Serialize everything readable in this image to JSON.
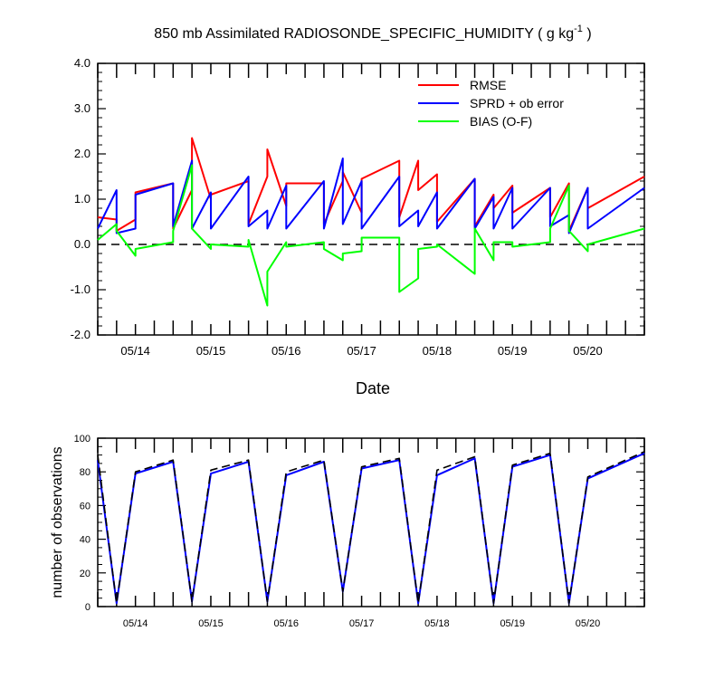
{
  "title": "850 mb Assimilated RADIOSONDE_SPECIFIC_HUMIDITY ( g kg",
  "title_sup": "-1",
  "title_end": " )",
  "xlabel": "Date",
  "chart_data": [
    {
      "type": "line",
      "title": "850 mb Assimilated RADIOSONDE_SPECIFIC_HUMIDITY ( g kg-1 )",
      "xlabel": "Date",
      "ylabel": "",
      "ylim": [
        -2.0,
        4.0
      ],
      "xlim": [
        0,
        7.25
      ],
      "yticks": [
        -2.0,
        -1.0,
        0.0,
        1.0,
        2.0,
        3.0,
        4.0
      ],
      "ytick_labels": [
        "-2.0",
        "-1.0",
        "0.0",
        "1.0",
        "2.0",
        "3.0",
        "4.0"
      ],
      "xticks": [
        0.5,
        1.5,
        2.5,
        3.5,
        4.5,
        5.5,
        6.5
      ],
      "xtick_labels": [
        "05/14",
        "05/15",
        "05/16",
        "05/17",
        "05/18",
        "05/19",
        "05/20"
      ],
      "grid": false,
      "legend_position": "top-right",
      "reference_line": {
        "y": 0.0,
        "style": "dashed",
        "color": "#000000"
      },
      "x": [
        0.0,
        0.25,
        0.25,
        0.5,
        0.5,
        1.0,
        1.0,
        1.25,
        1.25,
        1.5,
        1.5,
        2.0,
        2.0,
        2.25,
        2.25,
        2.5,
        2.5,
        3.0,
        3.0,
        3.25,
        3.25,
        3.5,
        3.5,
        4.0,
        4.0,
        4.25,
        4.25,
        4.5,
        4.5,
        5.0,
        5.0,
        5.25,
        5.25,
        5.5,
        5.5,
        6.0,
        6.0,
        6.25,
        6.25,
        6.5,
        6.5,
        7.25
      ],
      "series": [
        {
          "name": "RMSE",
          "color": "#ff0000",
          "values": [
            0.6,
            0.55,
            0.3,
            0.55,
            1.15,
            1.35,
            0.35,
            1.2,
            2.35,
            1.0,
            1.1,
            1.4,
            0.45,
            1.5,
            2.1,
            0.85,
            1.35,
            1.35,
            0.45,
            1.4,
            1.6,
            0.7,
            1.45,
            1.85,
            0.6,
            1.85,
            1.2,
            1.55,
            0.5,
            1.45,
            0.4,
            1.1,
            0.8,
            1.3,
            0.7,
            1.25,
            0.6,
            1.35,
            0.3,
            1.25,
            0.8,
            1.5
          ]
        },
        {
          "name": "SPRD + ob error",
          "color": "#0000ff",
          "values": [
            0.35,
            1.2,
            0.25,
            0.35,
            1.1,
            1.35,
            0.4,
            1.85,
            0.35,
            1.15,
            0.35,
            1.5,
            0.4,
            0.75,
            0.35,
            1.3,
            0.35,
            1.4,
            0.35,
            1.9,
            0.45,
            1.4,
            0.35,
            1.5,
            0.4,
            0.75,
            0.4,
            1.15,
            0.35,
            1.45,
            0.35,
            1.05,
            0.35,
            1.25,
            0.35,
            1.25,
            0.4,
            0.65,
            0.25,
            1.25,
            0.35,
            1.25
          ]
        },
        {
          "name": "BIAS (O-F)",
          "color": "#00ff00",
          "values": [
            0.1,
            0.45,
            0.3,
            -0.25,
            -0.1,
            0.05,
            0.3,
            1.75,
            0.35,
            -0.1,
            0.0,
            -0.05,
            0.1,
            -1.35,
            -0.6,
            0.05,
            -0.05,
            0.05,
            -0.1,
            -0.35,
            -0.2,
            -0.15,
            0.15,
            0.15,
            -1.05,
            -0.75,
            -0.1,
            -0.05,
            0.0,
            -0.65,
            0.35,
            -0.35,
            0.05,
            0.05,
            -0.05,
            0.05,
            0.35,
            1.3,
            0.3,
            -0.15,
            0.0,
            0.35
          ]
        }
      ]
    },
    {
      "type": "line",
      "title": "",
      "xlabel": "",
      "ylabel": "number of observations",
      "ylim": [
        0,
        100
      ],
      "xlim": [
        0,
        7.25
      ],
      "yticks": [
        0,
        20,
        40,
        60,
        80,
        100
      ],
      "ytick_labels": [
        "0",
        "20",
        "40",
        "60",
        "80",
        "100"
      ],
      "xticks": [
        0.5,
        1.5,
        2.5,
        3.5,
        4.5,
        5.5,
        6.5
      ],
      "xtick_labels": [
        "05/14",
        "05/15",
        "05/16",
        "05/17",
        "05/18",
        "05/19",
        "05/20"
      ],
      "grid": false,
      "x": [
        0.0,
        0.25,
        0.5,
        1.0,
        1.25,
        1.5,
        2.0,
        2.25,
        2.5,
        3.0,
        3.25,
        3.5,
        4.0,
        4.25,
        4.5,
        5.0,
        5.25,
        5.5,
        6.0,
        6.25,
        6.5,
        7.25
      ],
      "series": [
        {
          "color": "#0000ff",
          "style": "solid",
          "values": [
            87,
            2,
            79,
            86,
            3,
            79,
            86,
            3,
            78,
            86,
            9,
            82,
            87,
            2,
            78,
            88,
            2,
            83,
            90,
            2,
            76,
            91
          ]
        },
        {
          "color": "#000000",
          "style": "dashed",
          "values": [
            90,
            2,
            80,
            87,
            3,
            81,
            87,
            3,
            80,
            87,
            9,
            83,
            88,
            2,
            81,
            89,
            2,
            84,
            91,
            2,
            77,
            92
          ]
        }
      ]
    }
  ]
}
